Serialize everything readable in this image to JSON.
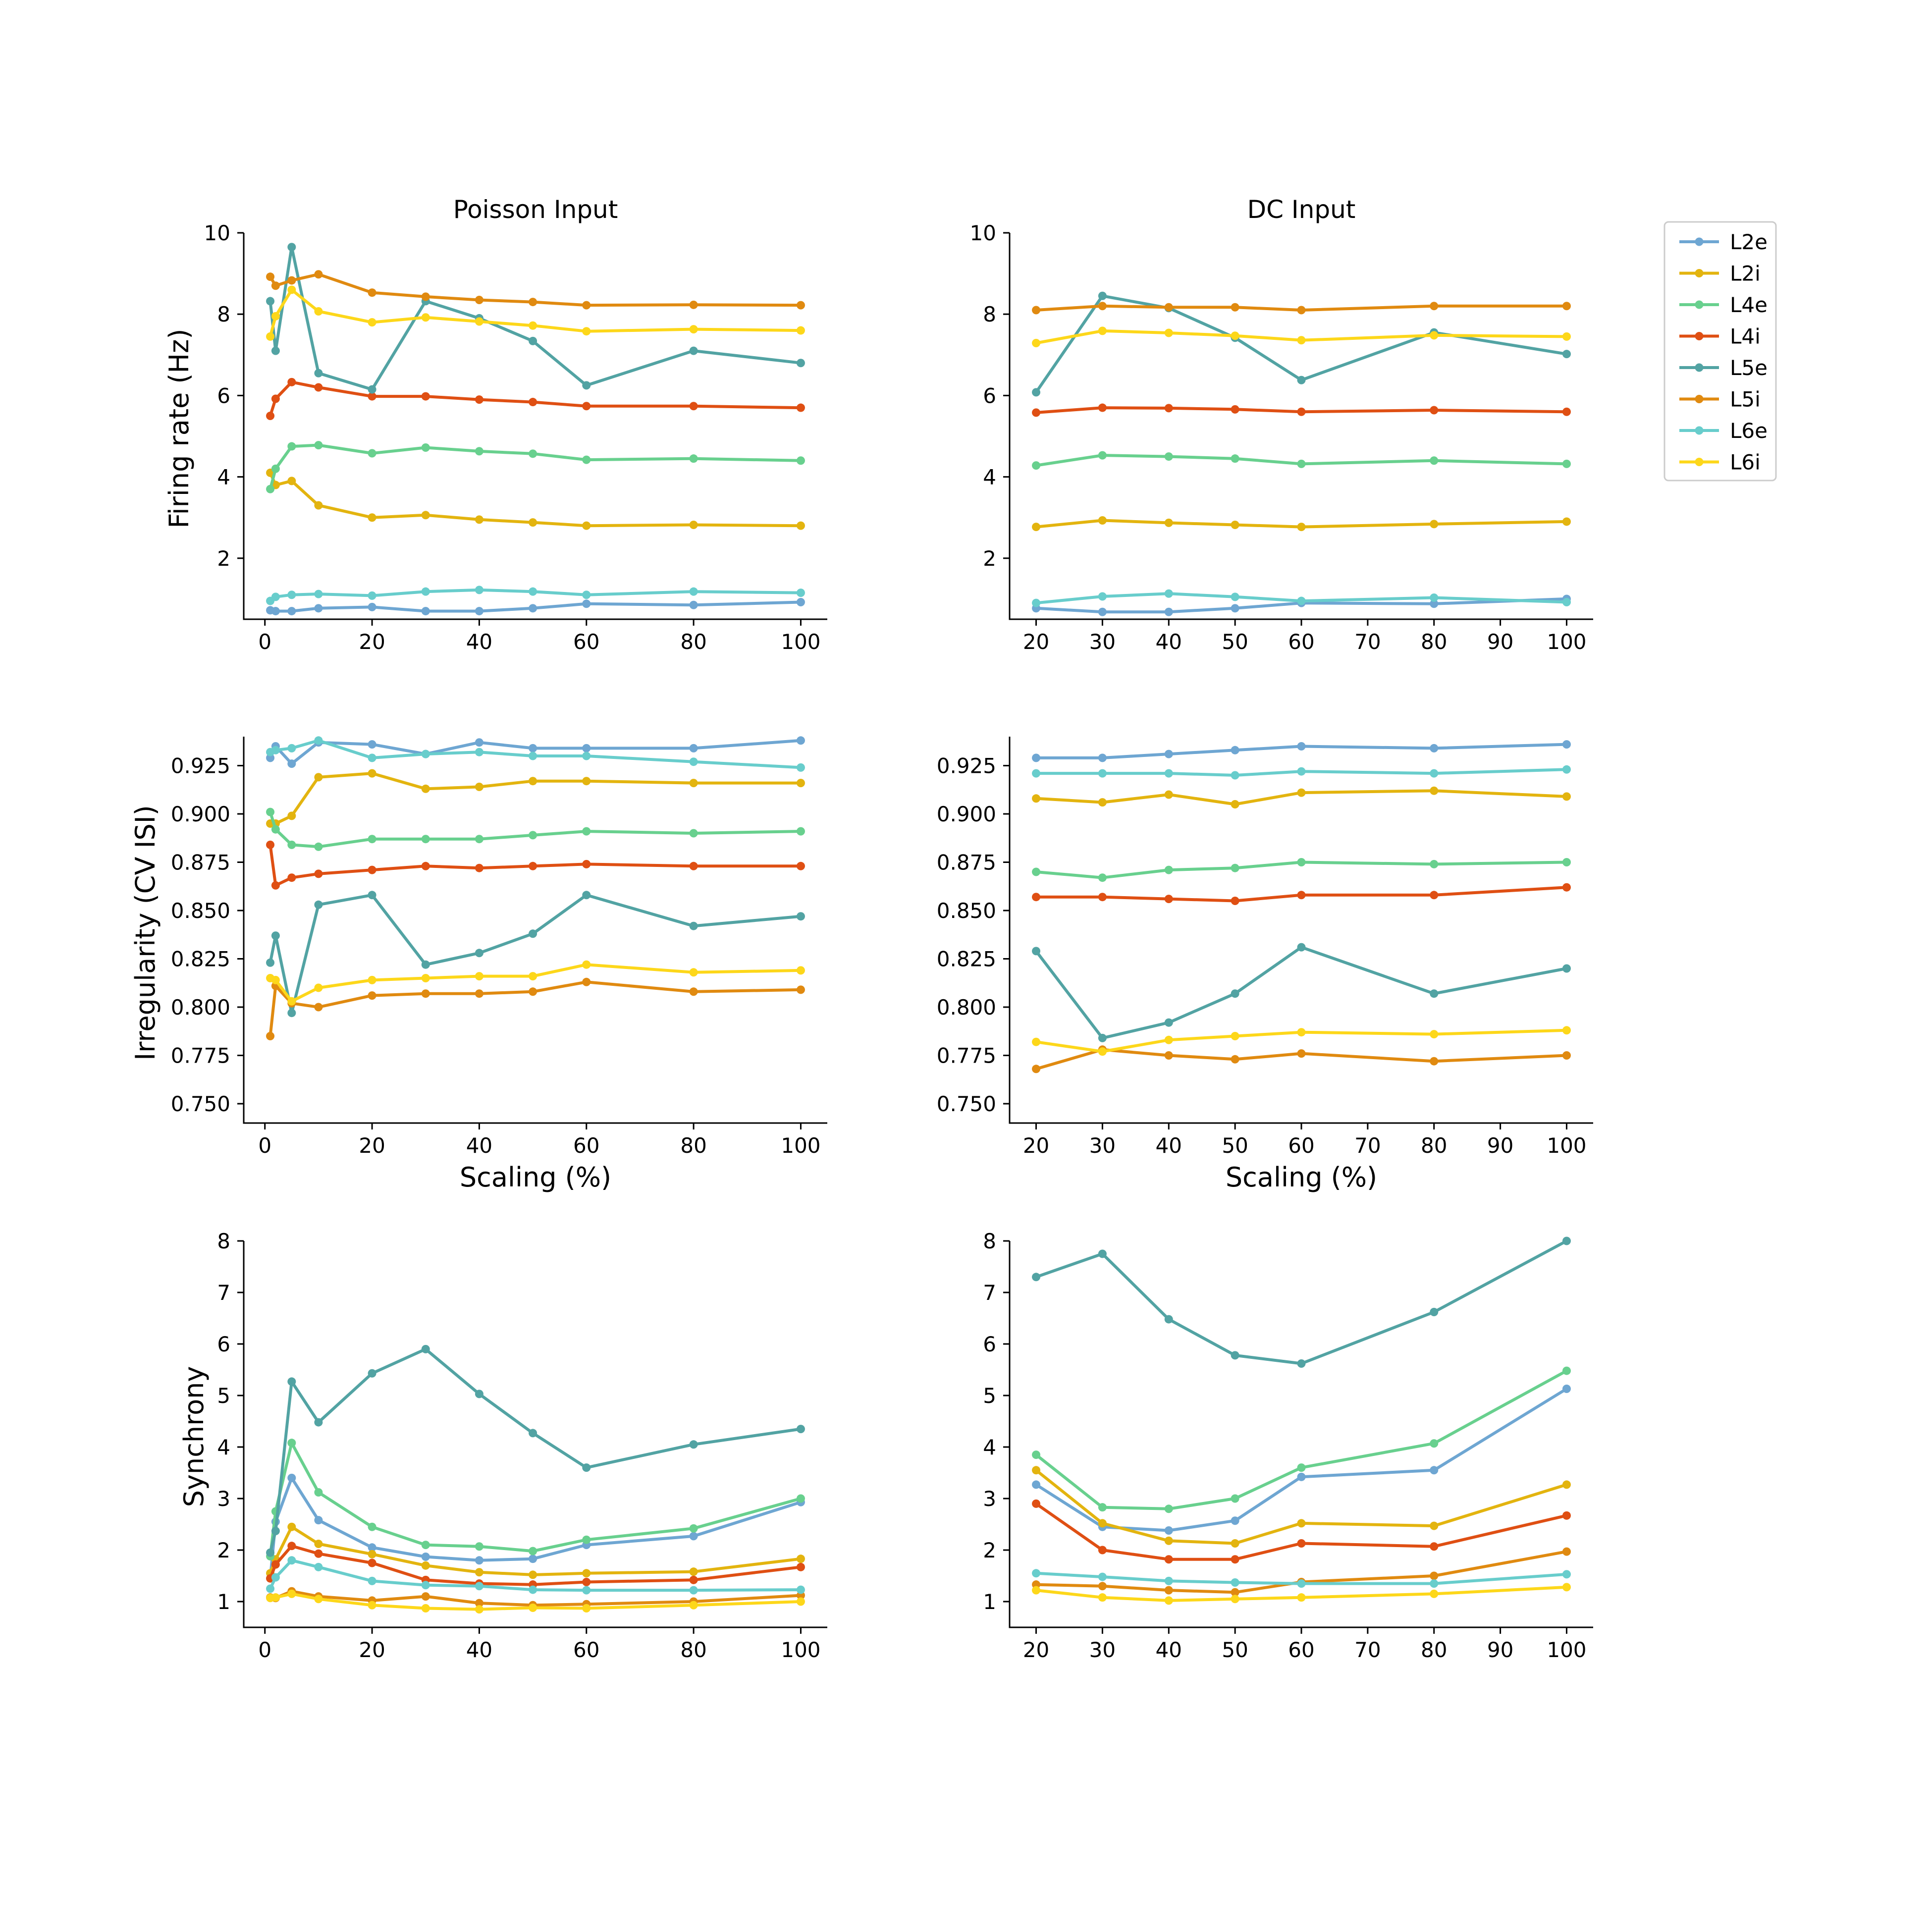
{
  "colors": {
    "L2e": "#6ea6d2",
    "L2i": "#e3b40f",
    "L4e": "#68d08e",
    "L4i": "#df4f13",
    "L5e": "#52a3a3",
    "L5i": "#e08a10",
    "L6e": "#68cdcc",
    "L6i": "#fdd71a"
  },
  "legend": {
    "entries": [
      "L2e",
      "L2i",
      "L4e",
      "L4i",
      "L5e",
      "L5i",
      "L6e",
      "L6i"
    ]
  },
  "chart_data": [
    {
      "id": "poisson_rate",
      "type": "line",
      "title": "Poisson Input",
      "xlabel": "",
      "ylabel": "Firing rate (Hz)",
      "xlim": [
        -3.95,
        104.95
      ],
      "ylim": [
        0.5,
        10
      ],
      "xticks": [
        0,
        20,
        40,
        60,
        80,
        100
      ],
      "yticks": [
        2,
        4,
        6,
        8,
        10
      ],
      "ytick_labels": [
        "2",
        "4",
        "6",
        "8",
        "10"
      ],
      "x": [
        1,
        2,
        5,
        10,
        20,
        30,
        40,
        50,
        60,
        80,
        100
      ],
      "series": [
        {
          "name": "L2e",
          "values": [
            0.72,
            0.7,
            0.7,
            0.77,
            0.8,
            0.7,
            0.7,
            0.77,
            0.88,
            0.85,
            0.92
          ]
        },
        {
          "name": "L2i",
          "values": [
            4.1,
            3.8,
            3.9,
            3.3,
            3.0,
            3.06,
            2.95,
            2.88,
            2.8,
            2.82,
            2.8
          ]
        },
        {
          "name": "L4e",
          "values": [
            3.7,
            4.2,
            4.75,
            4.78,
            4.58,
            4.72,
            4.63,
            4.57,
            4.42,
            4.45,
            4.4
          ]
        },
        {
          "name": "L4i",
          "values": [
            5.5,
            5.92,
            6.33,
            6.2,
            5.98,
            5.98,
            5.9,
            5.84,
            5.74,
            5.74,
            5.7
          ]
        },
        {
          "name": "L5e",
          "values": [
            8.32,
            7.1,
            9.65,
            6.55,
            6.15,
            8.32,
            7.9,
            7.34,
            6.25,
            7.1,
            6.8
          ]
        },
        {
          "name": "L5i",
          "values": [
            8.92,
            8.7,
            8.83,
            8.98,
            8.53,
            8.43,
            8.35,
            8.3,
            8.22,
            8.23,
            8.22
          ]
        },
        {
          "name": "L6e",
          "values": [
            0.95,
            1.05,
            1.1,
            1.12,
            1.08,
            1.18,
            1.22,
            1.18,
            1.1,
            1.18,
            1.15
          ]
        },
        {
          "name": "L6i",
          "values": [
            7.45,
            7.95,
            8.6,
            8.07,
            7.8,
            7.92,
            7.82,
            7.72,
            7.58,
            7.63,
            7.6
          ]
        }
      ]
    },
    {
      "id": "dc_rate",
      "type": "line",
      "title": "DC Input",
      "xlabel": "",
      "ylabel": "",
      "xlim": [
        16,
        104
      ],
      "ylim": [
        0.5,
        10
      ],
      "xticks": [
        20,
        30,
        40,
        50,
        60,
        70,
        80,
        90,
        100
      ],
      "yticks": [
        2,
        4,
        6,
        8,
        10
      ],
      "ytick_labels": [
        "2",
        "4",
        "6",
        "8",
        "10"
      ],
      "x": [
        20,
        30,
        40,
        50,
        60,
        80,
        100
      ],
      "series": [
        {
          "name": "L2e",
          "values": [
            0.77,
            0.68,
            0.68,
            0.77,
            0.9,
            0.88,
            1.0
          ]
        },
        {
          "name": "L2i",
          "values": [
            2.77,
            2.93,
            2.87,
            2.82,
            2.77,
            2.84,
            2.9
          ]
        },
        {
          "name": "L4e",
          "values": [
            4.28,
            4.53,
            4.5,
            4.45,
            4.32,
            4.4,
            4.32
          ]
        },
        {
          "name": "L4i",
          "values": [
            5.58,
            5.7,
            5.69,
            5.66,
            5.6,
            5.64,
            5.6
          ]
        },
        {
          "name": "L5e",
          "values": [
            6.08,
            8.45,
            8.15,
            7.42,
            6.38,
            7.55,
            7.02
          ]
        },
        {
          "name": "L5i",
          "values": [
            8.1,
            8.2,
            8.17,
            8.17,
            8.1,
            8.2,
            8.2
          ]
        },
        {
          "name": "L6e",
          "values": [
            0.9,
            1.06,
            1.13,
            1.05,
            0.95,
            1.03,
            0.92
          ]
        },
        {
          "name": "L6i",
          "values": [
            7.29,
            7.59,
            7.54,
            7.47,
            7.36,
            7.48,
            7.45
          ]
        }
      ]
    },
    {
      "id": "poisson_cv",
      "type": "line",
      "title": "",
      "xlabel": "Scaling (%)",
      "ylabel": "Irregularity (CV ISI)",
      "xlim": [
        -3.95,
        104.95
      ],
      "ylim": [
        0.74,
        0.94
      ],
      "xticks": [
        0,
        20,
        40,
        60,
        80,
        100
      ],
      "yticks": [
        0.75,
        0.775,
        0.8,
        0.825,
        0.85,
        0.875,
        0.9,
        0.925
      ],
      "ytick_labels": [
        "0.750",
        "0.775",
        "0.800",
        "0.825",
        "0.850",
        "0.875",
        "0.900",
        "0.925"
      ],
      "x": [
        1,
        2,
        5,
        10,
        20,
        30,
        40,
        50,
        60,
        80,
        100
      ],
      "series": [
        {
          "name": "L2e",
          "values": [
            0.929,
            0.935,
            0.926,
            0.937,
            0.936,
            0.931,
            0.937,
            0.934,
            0.934,
            0.934,
            0.938
          ]
        },
        {
          "name": "L2i",
          "values": [
            0.895,
            0.895,
            0.899,
            0.919,
            0.921,
            0.913,
            0.914,
            0.917,
            0.917,
            0.916,
            0.916
          ]
        },
        {
          "name": "L4e",
          "values": [
            0.901,
            0.892,
            0.884,
            0.883,
            0.887,
            0.887,
            0.887,
            0.889,
            0.891,
            0.89,
            0.891
          ]
        },
        {
          "name": "L4i",
          "values": [
            0.884,
            0.863,
            0.867,
            0.869,
            0.871,
            0.873,
            0.872,
            0.873,
            0.874,
            0.873,
            0.873
          ]
        },
        {
          "name": "L5e",
          "values": [
            0.823,
            0.837,
            0.797,
            0.853,
            0.858,
            0.822,
            0.828,
            0.838,
            0.858,
            0.842,
            0.847
          ]
        },
        {
          "name": "L5i",
          "values": [
            0.785,
            0.811,
            0.802,
            0.8,
            0.806,
            0.807,
            0.807,
            0.808,
            0.813,
            0.808,
            0.809
          ]
        },
        {
          "name": "L6e",
          "values": [
            0.932,
            0.933,
            0.934,
            0.938,
            0.929,
            0.931,
            0.932,
            0.93,
            0.93,
            0.927,
            0.924
          ]
        },
        {
          "name": "L6i",
          "values": [
            0.815,
            0.814,
            0.803,
            0.81,
            0.814,
            0.815,
            0.816,
            0.816,
            0.822,
            0.818,
            0.819
          ]
        }
      ]
    },
    {
      "id": "dc_cv",
      "type": "line",
      "title": "",
      "xlabel": "Scaling (%)",
      "ylabel": "",
      "xlim": [
        16,
        104
      ],
      "ylim": [
        0.74,
        0.94
      ],
      "xticks": [
        20,
        30,
        40,
        50,
        60,
        70,
        80,
        90,
        100
      ],
      "yticks": [
        0.75,
        0.775,
        0.8,
        0.825,
        0.85,
        0.875,
        0.9,
        0.925
      ],
      "ytick_labels": [
        "0.750",
        "0.775",
        "0.800",
        "0.825",
        "0.850",
        "0.875",
        "0.900",
        "0.925"
      ],
      "x": [
        20,
        30,
        40,
        50,
        60,
        80,
        100
      ],
      "series": [
        {
          "name": "L2e",
          "values": [
            0.929,
            0.929,
            0.931,
            0.933,
            0.935,
            0.934,
            0.936
          ]
        },
        {
          "name": "L2i",
          "values": [
            0.908,
            0.906,
            0.91,
            0.905,
            0.911,
            0.912,
            0.909
          ]
        },
        {
          "name": "L4e",
          "values": [
            0.87,
            0.867,
            0.871,
            0.872,
            0.875,
            0.874,
            0.875
          ]
        },
        {
          "name": "L4i",
          "values": [
            0.857,
            0.857,
            0.856,
            0.855,
            0.858,
            0.858,
            0.862
          ]
        },
        {
          "name": "L5e",
          "values": [
            0.829,
            0.784,
            0.792,
            0.807,
            0.831,
            0.807,
            0.82
          ]
        },
        {
          "name": "L5i",
          "values": [
            0.768,
            0.778,
            0.775,
            0.773,
            0.776,
            0.772,
            0.775
          ]
        },
        {
          "name": "L6e",
          "values": [
            0.921,
            0.921,
            0.921,
            0.92,
            0.922,
            0.921,
            0.923
          ]
        },
        {
          "name": "L6i",
          "values": [
            0.782,
            0.777,
            0.783,
            0.785,
            0.787,
            0.786,
            0.788
          ]
        }
      ]
    },
    {
      "id": "poisson_sync",
      "type": "line",
      "title": "",
      "xlabel": "",
      "ylabel": "Synchrony",
      "xlim": [
        -3.95,
        104.95
      ],
      "ylim": [
        0.5,
        8
      ],
      "xticks": [
        0,
        20,
        40,
        60,
        80,
        100
      ],
      "yticks": [
        1,
        2,
        3,
        4,
        5,
        6,
        7,
        8
      ],
      "ytick_labels": [
        "1",
        "2",
        "3",
        "4",
        "5",
        "6",
        "7",
        "8"
      ],
      "x": [
        1,
        2,
        5,
        10,
        20,
        30,
        40,
        50,
        60,
        80,
        100
      ],
      "series": [
        {
          "name": "L2e",
          "values": [
            1.45,
            2.55,
            3.4,
            2.58,
            2.05,
            1.87,
            1.8,
            1.83,
            2.1,
            2.27,
            2.93
          ]
        },
        {
          "name": "L2i",
          "values": [
            1.55,
            1.82,
            2.45,
            2.12,
            1.92,
            1.7,
            1.57,
            1.52,
            1.55,
            1.58,
            1.83
          ]
        },
        {
          "name": "L4e",
          "values": [
            1.88,
            2.75,
            4.08,
            3.12,
            2.45,
            2.1,
            2.07,
            1.98,
            2.2,
            2.42,
            3.0
          ]
        },
        {
          "name": "L4i",
          "values": [
            1.45,
            1.72,
            2.08,
            1.93,
            1.75,
            1.42,
            1.35,
            1.33,
            1.38,
            1.42,
            1.67
          ]
        },
        {
          "name": "L5e",
          "values": [
            1.95,
            2.37,
            5.27,
            4.48,
            5.43,
            5.9,
            5.03,
            4.27,
            3.6,
            4.05,
            4.35
          ]
        },
        {
          "name": "L5i",
          "values": [
            1.08,
            1.07,
            1.2,
            1.1,
            1.02,
            1.1,
            0.97,
            0.93,
            0.95,
            1.0,
            1.12
          ]
        },
        {
          "name": "L6e",
          "values": [
            1.25,
            1.47,
            1.8,
            1.67,
            1.4,
            1.32,
            1.3,
            1.23,
            1.22,
            1.22,
            1.23
          ]
        },
        {
          "name": "L6i",
          "values": [
            1.07,
            1.08,
            1.15,
            1.05,
            0.93,
            0.87,
            0.85,
            0.88,
            0.87,
            0.93,
            1.0
          ]
        }
      ]
    },
    {
      "id": "dc_sync",
      "type": "line",
      "title": "",
      "xlabel": "",
      "ylabel": "",
      "xlim": [
        16,
        104
      ],
      "ylim": [
        0.5,
        8
      ],
      "xticks": [
        20,
        30,
        40,
        50,
        60,
        70,
        80,
        90,
        100
      ],
      "yticks": [
        1,
        2,
        3,
        4,
        5,
        6,
        7,
        8
      ],
      "ytick_labels": [
        "1",
        "2",
        "3",
        "4",
        "5",
        "6",
        "7",
        "8"
      ],
      "x": [
        20,
        30,
        40,
        50,
        60,
        80,
        100
      ],
      "series": [
        {
          "name": "L2e",
          "values": [
            3.27,
            2.45,
            2.38,
            2.57,
            3.42,
            3.55,
            5.13
          ]
        },
        {
          "name": "L2i",
          "values": [
            3.55,
            2.52,
            2.18,
            2.13,
            2.52,
            2.47,
            3.27
          ]
        },
        {
          "name": "L4e",
          "values": [
            3.85,
            2.83,
            2.8,
            3.0,
            3.6,
            4.07,
            5.48
          ]
        },
        {
          "name": "L4i",
          "values": [
            2.9,
            2.0,
            1.82,
            1.82,
            2.13,
            2.07,
            2.67
          ]
        },
        {
          "name": "L5e",
          "values": [
            7.3,
            7.75,
            6.48,
            5.78,
            5.62,
            6.62,
            8.0
          ]
        },
        {
          "name": "L5i",
          "values": [
            1.33,
            1.3,
            1.22,
            1.18,
            1.38,
            1.5,
            1.97
          ]
        },
        {
          "name": "L6e",
          "values": [
            1.55,
            1.48,
            1.4,
            1.37,
            1.35,
            1.35,
            1.53
          ]
        },
        {
          "name": "L6i",
          "values": [
            1.22,
            1.08,
            1.02,
            1.05,
            1.08,
            1.15,
            1.28
          ]
        }
      ]
    }
  ]
}
